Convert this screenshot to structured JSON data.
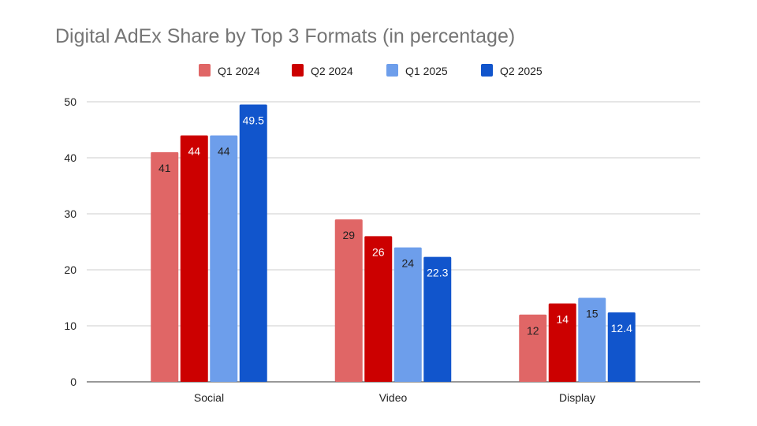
{
  "chart_data": {
    "type": "bar",
    "title": "Digital AdEx Share by Top 3 Formats (in percentage)",
    "xlabel": "",
    "ylabel": "",
    "categories": [
      "Social",
      "Video",
      "Display"
    ],
    "series": [
      {
        "name": "Q1 2024",
        "values": [
          41,
          29,
          12
        ],
        "color": "#e06666",
        "label_color": "#222222"
      },
      {
        "name": "Q2 2024",
        "values": [
          44,
          26,
          14
        ],
        "color": "#cc0000",
        "label_color": "#ffffff"
      },
      {
        "name": "Q1 2025",
        "values": [
          44,
          24,
          15
        ],
        "color": "#6d9eeb",
        "label_color": "#222222"
      },
      {
        "name": "Q2 2025",
        "values": [
          49.5,
          22.3,
          12.4
        ],
        "color": "#1155cc",
        "label_color": "#ffffff"
      }
    ],
    "ylim": [
      0,
      50
    ],
    "yticks": [
      0,
      10,
      20,
      30,
      40,
      50
    ],
    "grid": true,
    "legend": "top",
    "data_labels": true
  }
}
